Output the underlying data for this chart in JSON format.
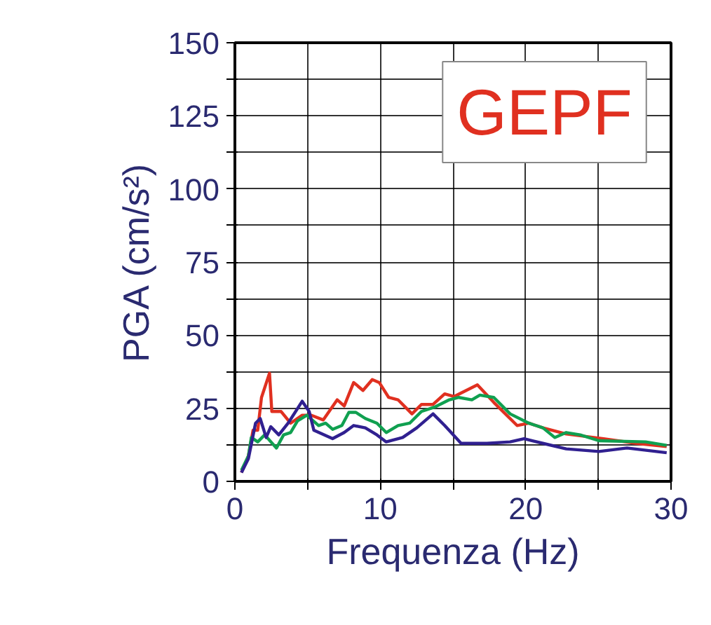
{
  "chart_data": {
    "type": "line",
    "xlabel": "Frequenza (Hz)",
    "ylabel": "PGA (cm/s²)",
    "annotations": [
      "GEPF"
    ],
    "xlim": [
      0,
      30
    ],
    "ylim": [
      0,
      150
    ],
    "xticks": [
      0,
      {
        "value": 5,
        "label": null
      },
      10,
      {
        "value": 15,
        "label": null
      },
      20,
      {
        "value": 25,
        "label": null
      },
      30
    ],
    "yticks": [
      0,
      {
        "value": 12.5,
        "label": null
      },
      25,
      {
        "value": 37.5,
        "label": null
      },
      50,
      {
        "value": 62.5,
        "label": null
      },
      75,
      {
        "value": 87.5,
        "label": null
      },
      100,
      {
        "value": 112.5,
        "label": null
      },
      125,
      {
        "value": 137.5,
        "label": null
      },
      150
    ],
    "grid": true,
    "marker": "none",
    "line_style": "solid",
    "series": [
      {
        "color": "#e03020",
        "x": [
          0.45,
          0.93,
          1.25,
          1.57,
          1.83,
          2.38,
          2.54,
          3.18,
          3.83,
          4.63,
          5.27,
          6.08,
          7.04,
          7.52,
          8.17,
          8.81,
          9.45,
          9.93,
          10.58,
          11.22,
          12.18,
          12.83,
          13.63,
          14.43,
          15.07,
          16.68,
          17.81,
          19.41,
          20.22,
          21.19,
          22.79,
          25.36,
          27.61,
          29.7
        ],
        "values": [
          3,
          8.7,
          17.5,
          17.5,
          28.7,
          37,
          23.9,
          23.9,
          19.9,
          22.6,
          22.6,
          21,
          27.9,
          25.8,
          33.8,
          31.1,
          34.8,
          33.8,
          28.7,
          27.9,
          23.1,
          26.3,
          26.3,
          29.9,
          29,
          33,
          27,
          19.1,
          19.9,
          18.3,
          16.2,
          14.6,
          13,
          11.9
        ]
      },
      {
        "color": "#10a050",
        "x": [
          0.45,
          0.93,
          1.13,
          1.57,
          2.05,
          2.86,
          3.35,
          3.83,
          4.31,
          4.95,
          5.76,
          6.24,
          6.72,
          7.36,
          7.84,
          8.32,
          8.97,
          9.77,
          10.41,
          11.22,
          12.02,
          12.83,
          13.79,
          14.75,
          15.4,
          16.3,
          16.85,
          17.81,
          18.93,
          20.22,
          21.19,
          22,
          22.79,
          23.75,
          25.04,
          28.25,
          29.7
        ],
        "values": [
          3.8,
          8.7,
          15,
          13.5,
          15.9,
          11.4,
          15.9,
          16.7,
          20.7,
          22.6,
          19.1,
          19.9,
          17.8,
          19.1,
          23.6,
          23.6,
          21.5,
          19.9,
          16.7,
          19.1,
          19.9,
          23.9,
          25.5,
          27.9,
          28.7,
          27.9,
          29.5,
          28.7,
          23.1,
          19.9,
          18.3,
          15,
          16.7,
          15.9,
          13.9,
          13.5,
          12.3
        ]
      },
      {
        "color": "#302090",
        "x": [
          0.45,
          0.93,
          1.42,
          1.74,
          2.15,
          2.47,
          3.02,
          3.66,
          4.63,
          5.11,
          5.43,
          6.72,
          7.52,
          8.17,
          8.97,
          9.77,
          10.41,
          11.54,
          12.51,
          13.63,
          14.43,
          15.56,
          17.33,
          18.93,
          19.89,
          21.19,
          22.79,
          25.04,
          26.97,
          29.7
        ],
        "values": [
          3,
          7.8,
          19.9,
          21.5,
          15,
          18.7,
          15.9,
          19.9,
          27.4,
          23.9,
          17.5,
          14.6,
          16.7,
          19.1,
          18.3,
          15.9,
          13.5,
          15,
          18.3,
          23.1,
          19.1,
          13,
          13,
          13.5,
          14.6,
          13,
          11.1,
          10.2,
          11.4,
          9.8
        ]
      }
    ]
  }
}
